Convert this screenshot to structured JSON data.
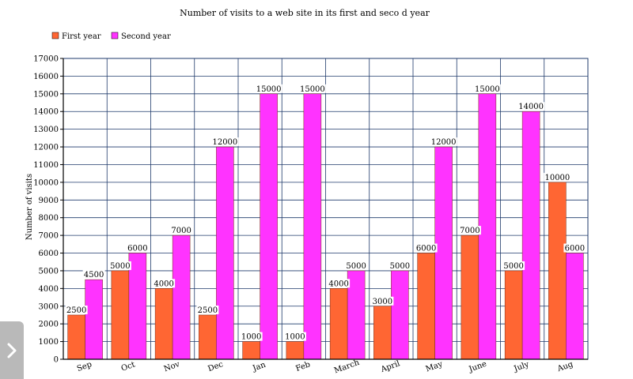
{
  "chart_data": {
    "type": "bar",
    "title": "Number of visits to a web site in its first and seco d year",
    "xlabel": "",
    "ylabel": "Number of visits",
    "ylim": [
      0,
      17000
    ],
    "yticks": [
      0,
      1000,
      2000,
      3000,
      4000,
      5000,
      6000,
      7000,
      8000,
      9000,
      10000,
      11000,
      12000,
      13000,
      14000,
      15000,
      16000,
      17000
    ],
    "grid": true,
    "legend_position": "top-left",
    "categories": [
      "Sep",
      "Oct",
      "Nov",
      "Dec",
      "Jan",
      "Feb",
      "March",
      "April",
      "May",
      "June",
      "July",
      "Aug"
    ],
    "series": [
      {
        "name": "First year",
        "color": "#ff6633",
        "values": [
          2500,
          5000,
          4000,
          2500,
          1000,
          1000,
          4000,
          3000,
          6000,
          7000,
          5000,
          10000
        ]
      },
      {
        "name": "Second year",
        "color": "#ff33ff",
        "values": [
          4500,
          6000,
          7000,
          12000,
          15000,
          15000,
          5000,
          5000,
          12000,
          15000,
          14000,
          6000
        ]
      }
    ],
    "data_labels": true
  },
  "ui": {
    "side_tab_icon": "chevron-right-icon"
  }
}
